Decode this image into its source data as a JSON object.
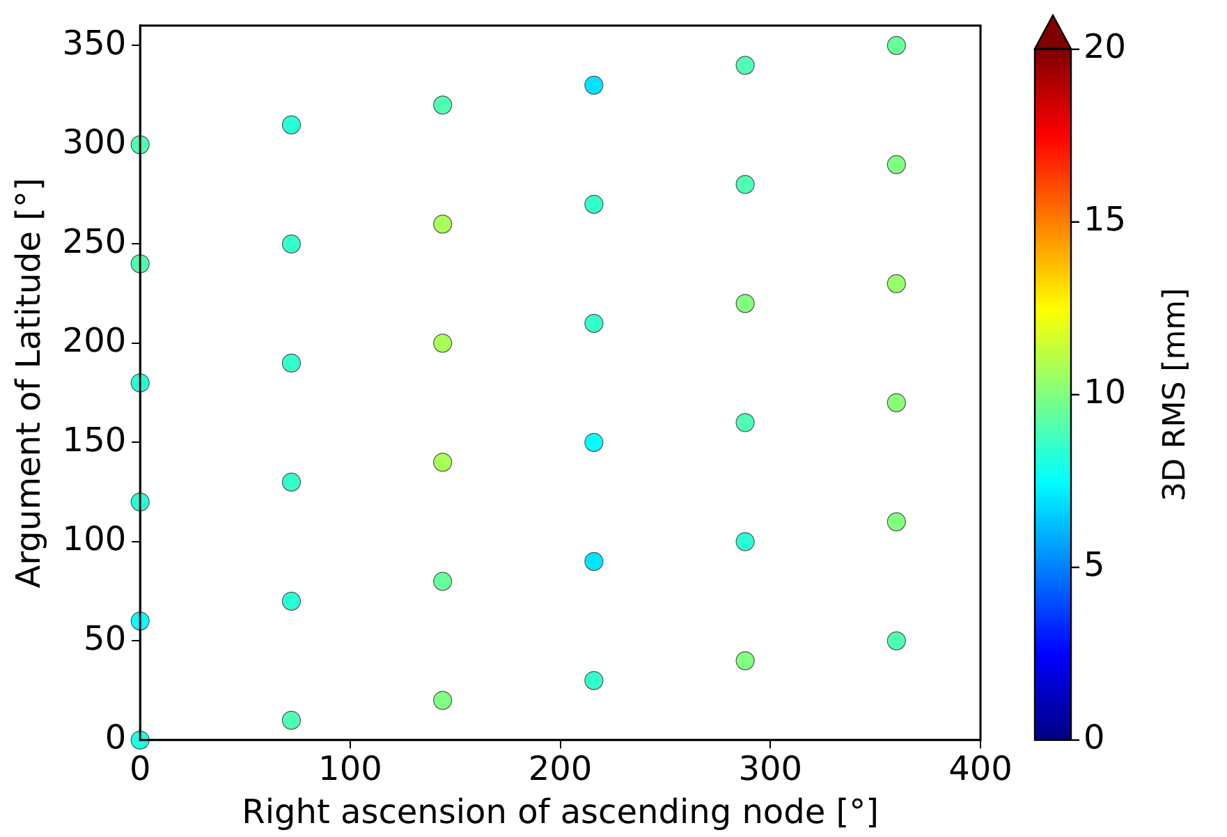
{
  "chart_data": {
    "type": "scatter",
    "xlabel": "Right ascension of ascending node [°]",
    "ylabel": "Argument of Latitude [°]",
    "clabel": "3D RMS [mm]",
    "x": [
      0,
      0,
      0,
      0,
      0,
      0,
      72,
      72,
      72,
      72,
      72,
      72,
      144,
      144,
      144,
      144,
      144,
      144,
      216,
      216,
      216,
      216,
      216,
      216,
      288,
      288,
      288,
      288,
      288,
      288,
      360,
      360,
      360,
      360,
      360,
      360
    ],
    "values": [
      0,
      60,
      120,
      180,
      240,
      300,
      10,
      70,
      130,
      190,
      250,
      310,
      20,
      80,
      140,
      200,
      260,
      320,
      30,
      90,
      150,
      210,
      270,
      330,
      40,
      100,
      160,
      220,
      280,
      340,
      50,
      110,
      170,
      230,
      290,
      350
    ],
    "cvalues": [
      8,
      7.6,
      8.3,
      8.3,
      9,
      9,
      9,
      8.3,
      8.5,
      8.5,
      8.5,
      8.3,
      10,
      9.5,
      10.8,
      10.8,
      10.8,
      9,
      8.5,
      7,
      7.5,
      8.5,
      8.5,
      7,
      10,
      8.3,
      9,
      10,
      9,
      9,
      9,
      10,
      10.2,
      10.4,
      10,
      9.5
    ],
    "clim": [
      0,
      20
    ],
    "cticks": [
      0,
      5,
      10,
      15,
      20
    ],
    "xlim": [
      0,
      400
    ],
    "xticks": [
      0,
      100,
      200,
      300,
      400
    ],
    "ylim": [
      0,
      360
    ],
    "yticks": [
      0,
      50,
      100,
      150,
      200,
      250,
      300,
      350
    ],
    "marker": "circle",
    "grid": false,
    "legend": false
  }
}
